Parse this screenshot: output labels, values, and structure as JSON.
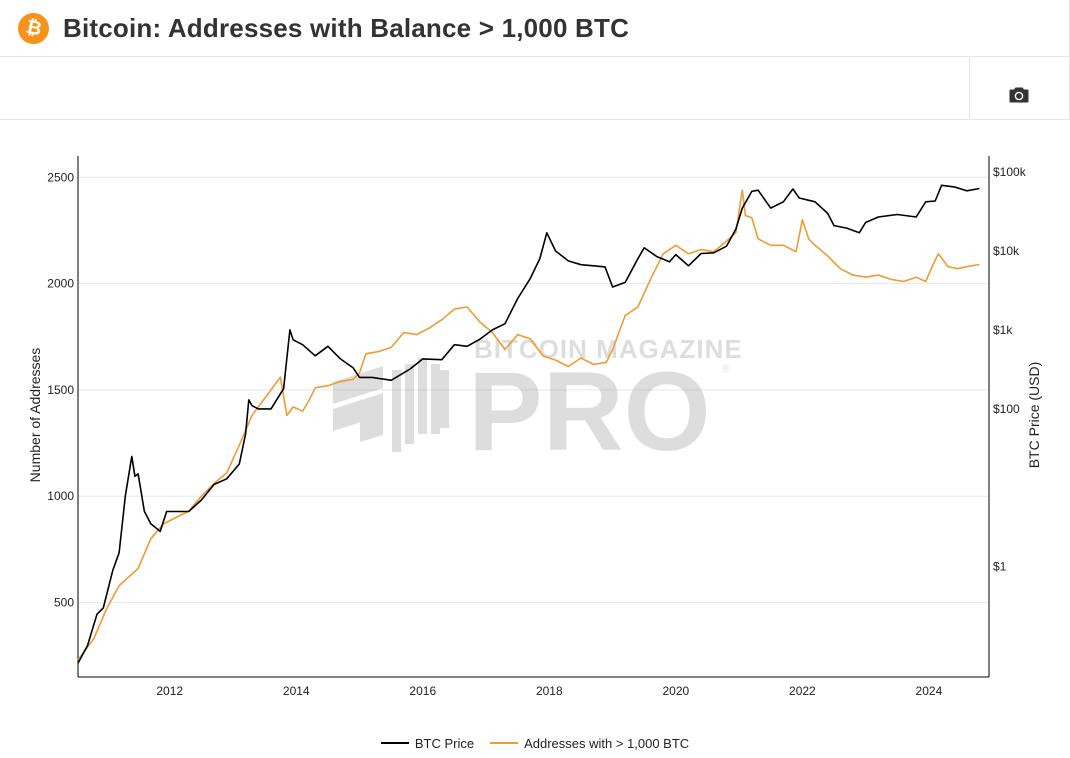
{
  "header": {
    "title": "Bitcoin: Addresses with Balance > 1,000 BTC",
    "logo_glyph": "₿",
    "logo_icon": "bitcoin-logo-icon",
    "accent_color": "#f7931a"
  },
  "toolbar": {
    "screenshot_icon": "camera-icon"
  },
  "watermark": {
    "line1": "BITCOIN MAGAZINE",
    "line2": "PRO",
    "mark": "®"
  },
  "chart_data": {
    "type": "line",
    "title": "",
    "ylabel": "Number of Addresses",
    "y2label": "BTC Price (USD)",
    "ylim": [
      150,
      2600
    ],
    "y2_scale": "log",
    "y2lim": [
      0.04,
      160000
    ],
    "xlim": [
      2010.55,
      2024.95
    ],
    "x_ticks": [
      "2012",
      "2014",
      "2016",
      "2018",
      "2020",
      "2022",
      "2024"
    ],
    "y_ticks": [
      "500",
      "1000",
      "1500",
      "2000",
      "2500"
    ],
    "y2_ticks": [
      "$1",
      "$100",
      "$1k",
      "$10k",
      "$100k"
    ],
    "grid": true,
    "legend_position": "bottom-center",
    "series": [
      {
        "name": "BTC Price",
        "axis": "right",
        "color": "#000000",
        "x": [
          2010.55,
          2010.7,
          2010.85,
          2010.95,
          2011.1,
          2011.2,
          2011.3,
          2011.4,
          2011.45,
          2011.5,
          2011.6,
          2011.7,
          2011.85,
          2011.95,
          2012.1,
          2012.3,
          2012.5,
          2012.7,
          2012.9,
          2013.1,
          2013.2,
          2013.25,
          2013.3,
          2013.4,
          2013.6,
          2013.8,
          2013.9,
          2013.95,
          2014.1,
          2014.3,
          2014.5,
          2014.7,
          2014.9,
          2015.0,
          2015.2,
          2015.5,
          2015.8,
          2016.0,
          2016.3,
          2016.5,
          2016.7,
          2016.9,
          2017.1,
          2017.3,
          2017.5,
          2017.7,
          2017.85,
          2017.96,
          2018.1,
          2018.3,
          2018.5,
          2018.7,
          2018.88,
          2019.0,
          2019.2,
          2019.4,
          2019.5,
          2019.7,
          2019.9,
          2020.0,
          2020.2,
          2020.4,
          2020.6,
          2020.8,
          2020.95,
          2021.05,
          2021.2,
          2021.3,
          2021.5,
          2021.7,
          2021.85,
          2021.95,
          2022.2,
          2022.4,
          2022.5,
          2022.7,
          2022.9,
          2023.0,
          2023.2,
          2023.5,
          2023.8,
          2023.95,
          2024.1,
          2024.2,
          2024.4,
          2024.6,
          2024.8
        ],
        "y": [
          0.06,
          0.1,
          0.25,
          0.3,
          0.9,
          1.5,
          8,
          25,
          14,
          15,
          5,
          3.5,
          2.8,
          5,
          5,
          5,
          7,
          11,
          13,
          20,
          48,
          130,
          110,
          100,
          100,
          180,
          1000,
          750,
          650,
          470,
          620,
          430,
          330,
          250,
          250,
          230,
          320,
          430,
          420,
          650,
          620,
          760,
          1000,
          1200,
          2500,
          4500,
          8000,
          17000,
          10000,
          7500,
          6700,
          6500,
          6300,
          3500,
          4000,
          8000,
          11000,
          8500,
          7300,
          9000,
          6500,
          9300,
          9500,
          11500,
          19000,
          35000,
          57000,
          59000,
          35000,
          42000,
          61000,
          47000,
          42000,
          30000,
          21000,
          19500,
          17000,
          23000,
          27000,
          29000,
          27000,
          42000,
          43000,
          68000,
          65000,
          58000,
          62000
        ]
      },
      {
        "name": "Addresses with > 1,000 BTC",
        "axis": "left",
        "color": "#f09a36",
        "x": [
          2010.55,
          2010.8,
          2011.0,
          2011.2,
          2011.5,
          2011.7,
          2011.9,
          2012.1,
          2012.3,
          2012.5,
          2012.7,
          2012.9,
          2013.1,
          2013.3,
          2013.4,
          2013.6,
          2013.75,
          2013.85,
          2013.95,
          2014.1,
          2014.2,
          2014.3,
          2014.5,
          2014.7,
          2014.9,
          2015.0,
          2015.1,
          2015.3,
          2015.5,
          2015.7,
          2015.9,
          2016.1,
          2016.3,
          2016.5,
          2016.7,
          2016.9,
          2017.1,
          2017.3,
          2017.5,
          2017.7,
          2017.9,
          2018.1,
          2018.3,
          2018.5,
          2018.7,
          2018.9,
          2019.0,
          2019.2,
          2019.4,
          2019.6,
          2019.8,
          2020.0,
          2020.2,
          2020.4,
          2020.6,
          2020.8,
          2020.95,
          2021.05,
          2021.1,
          2021.2,
          2021.3,
          2021.5,
          2021.7,
          2021.9,
          2022.0,
          2022.1,
          2022.2,
          2022.4,
          2022.6,
          2022.8,
          2023.0,
          2023.2,
          2023.4,
          2023.6,
          2023.8,
          2023.95,
          2024.05,
          2024.15,
          2024.3,
          2024.45,
          2024.6,
          2024.8
        ],
        "y": [
          230,
          330,
          470,
          580,
          660,
          800,
          870,
          900,
          930,
          1000,
          1060,
          1110,
          1240,
          1380,
          1420,
          1500,
          1560,
          1380,
          1420,
          1400,
          1450,
          1510,
          1520,
          1540,
          1550,
          1580,
          1670,
          1680,
          1700,
          1770,
          1760,
          1790,
          1830,
          1880,
          1890,
          1820,
          1770,
          1690,
          1760,
          1740,
          1660,
          1640,
          1610,
          1650,
          1620,
          1630,
          1690,
          1850,
          1890,
          2020,
          2140,
          2180,
          2140,
          2160,
          2150,
          2200,
          2240,
          2440,
          2320,
          2310,
          2210,
          2180,
          2180,
          2150,
          2300,
          2210,
          2180,
          2130,
          2070,
          2040,
          2030,
          2040,
          2020,
          2010,
          2030,
          2010,
          2080,
          2140,
          2080,
          2070,
          2080,
          2090
        ]
      }
    ]
  }
}
